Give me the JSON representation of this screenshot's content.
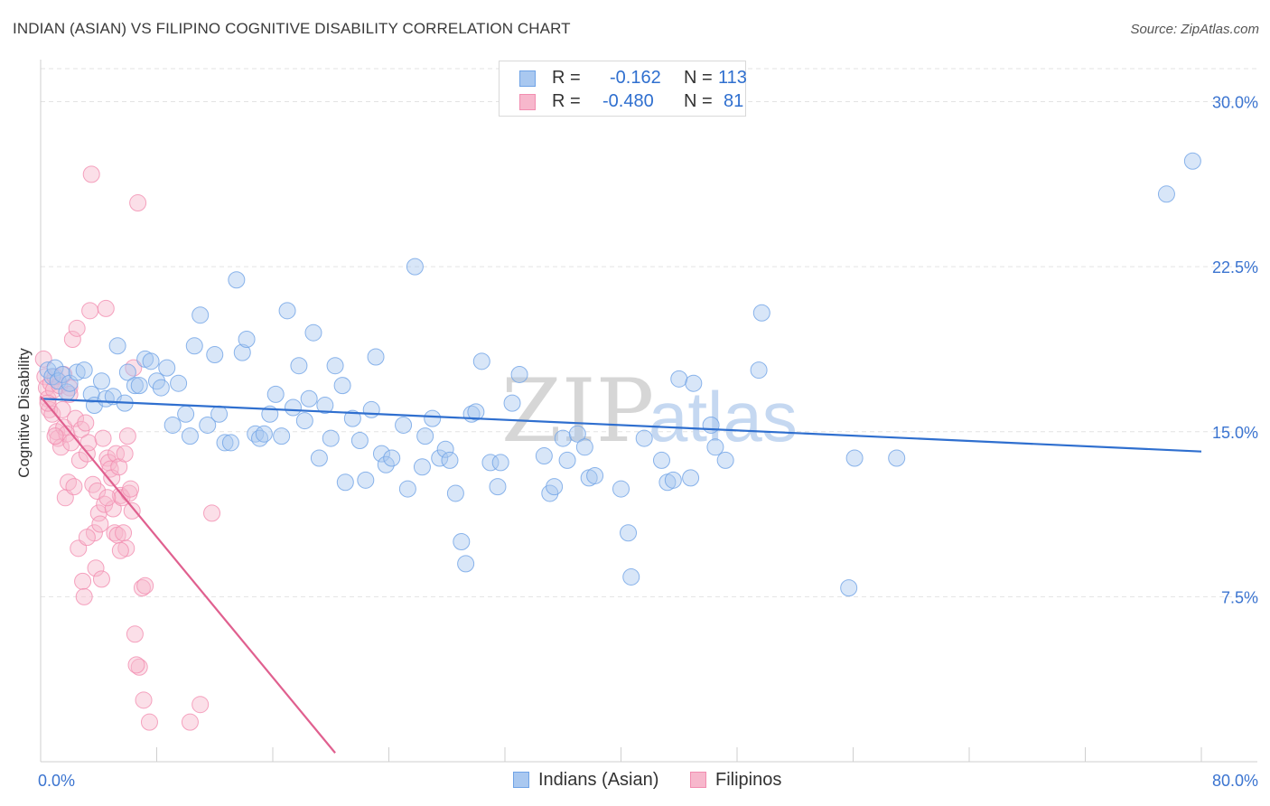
{
  "title": "INDIAN (ASIAN) VS FILIPINO COGNITIVE DISABILITY CORRELATION CHART",
  "source": "Source: ZipAtlas.com",
  "watermark": {
    "zip": "ZIP",
    "atlas": "atlas"
  },
  "legend": {
    "r_label": "R =",
    "n_label": "N =",
    "rows": [
      {
        "r": "-0.162",
        "n": "113",
        "color": "#a9c8f0"
      },
      {
        "r": "-0.480",
        "n": "81",
        "color": "#f7b7cc"
      }
    ]
  },
  "chart_data": {
    "type": "scatter",
    "title": "INDIAN (ASIAN) VS FILIPINO COGNITIVE DISABILITY CORRELATION CHART",
    "xlabel": "",
    "ylabel": "Cognitive Disability",
    "xlim": [
      0,
      80
    ],
    "ylim": [
      0,
      31.5
    ],
    "x_tick_labels": [
      "0.0%",
      "80.0%"
    ],
    "y_ticks": [
      7.5,
      15.0,
      22.5,
      30.0
    ],
    "y_tick_labels": [
      "7.5%",
      "15.0%",
      "22.5%",
      "30.0%"
    ],
    "grid": true,
    "legend_position": "top-center",
    "series": [
      {
        "name": "Indians (Asian)",
        "color": "#6fa3e6",
        "fill": "#a9c8f0",
        "line_color": "#2f6fcf",
        "trend": {
          "x": [
            0,
            80
          ],
          "y": [
            16.5,
            14.1
          ]
        },
        "points": [
          [
            0.5,
            17.8
          ],
          [
            0.8,
            17.5
          ],
          [
            1.0,
            17.9
          ],
          [
            1.2,
            17.3
          ],
          [
            1.5,
            17.6
          ],
          [
            1.8,
            16.8
          ],
          [
            2.0,
            17.2
          ],
          [
            2.5,
            17.7
          ],
          [
            3.0,
            17.8
          ],
          [
            3.5,
            16.7
          ],
          [
            3.7,
            16.2
          ],
          [
            4.2,
            17.3
          ],
          [
            4.5,
            16.5
          ],
          [
            5.0,
            16.6
          ],
          [
            5.3,
            18.9
          ],
          [
            5.8,
            16.3
          ],
          [
            6.0,
            17.7
          ],
          [
            6.5,
            17.1
          ],
          [
            6.8,
            17.1
          ],
          [
            7.2,
            18.3
          ],
          [
            7.6,
            18.2
          ],
          [
            8.0,
            17.3
          ],
          [
            8.3,
            17.0
          ],
          [
            8.7,
            17.9
          ],
          [
            9.1,
            15.3
          ],
          [
            9.5,
            17.2
          ],
          [
            10.0,
            15.8
          ],
          [
            10.3,
            14.8
          ],
          [
            10.6,
            18.9
          ],
          [
            11.0,
            20.3
          ],
          [
            11.5,
            15.3
          ],
          [
            12.0,
            18.5
          ],
          [
            12.3,
            15.8
          ],
          [
            12.7,
            14.5
          ],
          [
            13.1,
            14.5
          ],
          [
            13.5,
            21.9
          ],
          [
            13.9,
            18.6
          ],
          [
            14.2,
            19.2
          ],
          [
            14.8,
            14.9
          ],
          [
            15.1,
            14.7
          ],
          [
            15.4,
            14.9
          ],
          [
            15.8,
            15.8
          ],
          [
            16.2,
            16.7
          ],
          [
            16.6,
            14.8
          ],
          [
            17.0,
            20.5
          ],
          [
            17.4,
            16.1
          ],
          [
            17.8,
            18.0
          ],
          [
            18.2,
            15.5
          ],
          [
            18.5,
            16.5
          ],
          [
            18.8,
            19.5
          ],
          [
            19.2,
            13.8
          ],
          [
            19.6,
            16.2
          ],
          [
            20.0,
            14.7
          ],
          [
            20.3,
            18.0
          ],
          [
            20.8,
            17.1
          ],
          [
            21.0,
            12.7
          ],
          [
            21.5,
            15.6
          ],
          [
            22.0,
            14.6
          ],
          [
            22.4,
            12.8
          ],
          [
            22.8,
            16.0
          ],
          [
            23.1,
            18.4
          ],
          [
            23.5,
            14.0
          ],
          [
            23.8,
            13.5
          ],
          [
            24.2,
            13.8
          ],
          [
            25.0,
            15.3
          ],
          [
            25.3,
            12.4
          ],
          [
            25.8,
            22.5
          ],
          [
            26.3,
            13.4
          ],
          [
            26.5,
            14.8
          ],
          [
            27.0,
            15.6
          ],
          [
            27.5,
            13.8
          ],
          [
            27.9,
            14.2
          ],
          [
            28.2,
            13.7
          ],
          [
            28.6,
            12.2
          ],
          [
            29.0,
            10.0
          ],
          [
            29.3,
            9.0
          ],
          [
            29.7,
            15.8
          ],
          [
            30.4,
            18.2
          ],
          [
            31.0,
            13.6
          ],
          [
            31.5,
            12.5
          ],
          [
            31.7,
            13.6
          ],
          [
            32.5,
            16.3
          ],
          [
            33.0,
            17.6
          ],
          [
            34.7,
            13.9
          ],
          [
            35.1,
            12.2
          ],
          [
            35.4,
            12.5
          ],
          [
            36.0,
            14.7
          ],
          [
            36.3,
            13.7
          ],
          [
            37.0,
            14.9
          ],
          [
            37.5,
            14.3
          ],
          [
            37.8,
            12.9
          ],
          [
            38.2,
            13.0
          ],
          [
            40.0,
            12.4
          ],
          [
            40.5,
            10.4
          ],
          [
            40.7,
            8.4
          ],
          [
            41.6,
            14.7
          ],
          [
            42.8,
            13.7
          ],
          [
            43.2,
            12.7
          ],
          [
            43.6,
            12.8
          ],
          [
            44.0,
            17.4
          ],
          [
            44.8,
            12.9
          ],
          [
            45.0,
            17.2
          ],
          [
            46.2,
            15.3
          ],
          [
            46.5,
            14.3
          ],
          [
            47.2,
            13.7
          ],
          [
            49.5,
            17.8
          ],
          [
            49.7,
            20.4
          ],
          [
            55.7,
            7.9
          ],
          [
            56.1,
            13.8
          ],
          [
            59.0,
            13.8
          ],
          [
            77.6,
            25.8
          ],
          [
            79.4,
            27.3
          ],
          [
            30.0,
            15.9
          ]
        ]
      },
      {
        "name": "Filipinos",
        "color": "#f28db0",
        "fill": "#f7b7cc",
        "line_color": "#e0608f",
        "trend": {
          "x": [
            0,
            20.3
          ],
          "y": [
            16.6,
            0.4
          ]
        },
        "points": [
          [
            0.2,
            18.3
          ],
          [
            0.3,
            17.5
          ],
          [
            0.4,
            17.0
          ],
          [
            0.5,
            16.5
          ],
          [
            0.6,
            16.0
          ],
          [
            0.7,
            17.2
          ],
          [
            0.8,
            15.8
          ],
          [
            0.9,
            16.9
          ],
          [
            1.0,
            17.5
          ],
          [
            1.1,
            15.0
          ],
          [
            1.2,
            14.7
          ],
          [
            1.3,
            17.1
          ],
          [
            1.4,
            14.3
          ],
          [
            1.5,
            16.0
          ],
          [
            1.6,
            15.2
          ],
          [
            1.7,
            12.0
          ],
          [
            1.8,
            14.9
          ],
          [
            1.9,
            12.7
          ],
          [
            2.0,
            17.0
          ],
          [
            2.1,
            14.5
          ],
          [
            2.2,
            19.2
          ],
          [
            2.3,
            12.5
          ],
          [
            2.4,
            15.6
          ],
          [
            2.5,
            19.7
          ],
          [
            2.6,
            9.7
          ],
          [
            2.7,
            13.7
          ],
          [
            2.8,
            15.1
          ],
          [
            2.9,
            8.2
          ],
          [
            3.0,
            7.5
          ],
          [
            3.1,
            15.4
          ],
          [
            3.2,
            14.0
          ],
          [
            3.3,
            14.5
          ],
          [
            3.4,
            20.5
          ],
          [
            3.5,
            26.7
          ],
          [
            3.6,
            12.6
          ],
          [
            3.7,
            10.4
          ],
          [
            3.8,
            8.8
          ],
          [
            3.9,
            12.3
          ],
          [
            4.0,
            11.3
          ],
          [
            4.1,
            10.8
          ],
          [
            4.2,
            8.3
          ],
          [
            4.3,
            14.7
          ],
          [
            4.4,
            11.7
          ],
          [
            4.5,
            20.6
          ],
          [
            4.6,
            13.8
          ],
          [
            4.7,
            13.6
          ],
          [
            4.8,
            13.3
          ],
          [
            4.9,
            12.9
          ],
          [
            5.0,
            11.5
          ],
          [
            5.1,
            10.4
          ],
          [
            5.2,
            14.0
          ],
          [
            5.3,
            10.3
          ],
          [
            5.4,
            13.4
          ],
          [
            5.5,
            12.1
          ],
          [
            5.6,
            12.0
          ],
          [
            5.7,
            10.4
          ],
          [
            5.8,
            14.0
          ],
          [
            5.9,
            9.7
          ],
          [
            6.0,
            14.8
          ],
          [
            6.1,
            12.2
          ],
          [
            6.2,
            12.4
          ],
          [
            6.3,
            11.4
          ],
          [
            6.4,
            17.9
          ],
          [
            6.5,
            5.8
          ],
          [
            6.7,
            25.4
          ],
          [
            6.8,
            4.3
          ],
          [
            7.0,
            7.9
          ],
          [
            7.2,
            8.0
          ],
          [
            7.5,
            1.8
          ],
          [
            10.3,
            1.8
          ],
          [
            11.0,
            2.6
          ],
          [
            11.8,
            11.3
          ],
          [
            1.6,
            17.6
          ],
          [
            2.0,
            16.7
          ],
          [
            0.5,
            16.3
          ],
          [
            1.0,
            14.8
          ],
          [
            3.2,
            10.2
          ],
          [
            4.6,
            12.0
          ],
          [
            5.5,
            9.6
          ],
          [
            6.6,
            4.4
          ],
          [
            7.1,
            2.8
          ]
        ]
      }
    ]
  }
}
